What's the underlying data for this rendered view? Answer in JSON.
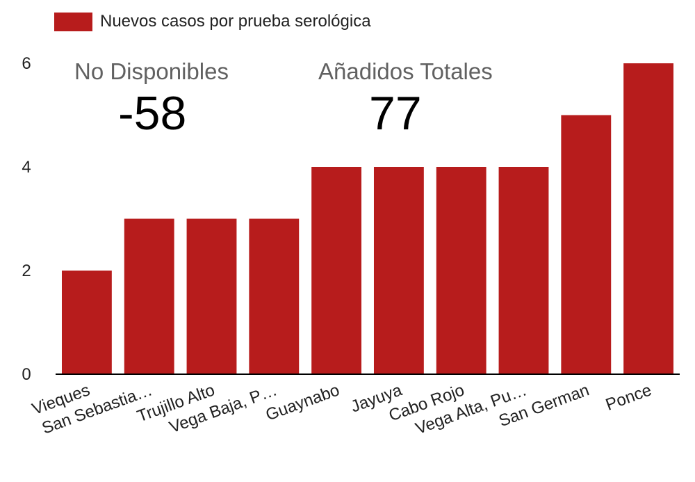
{
  "legend": {
    "label": "Nuevos casos por prueba serológica"
  },
  "stats": {
    "no_disponibles": {
      "label": "No Disponibles",
      "value": "-58"
    },
    "anadidos_totales": {
      "label": "Añadidos Totales",
      "value": "77"
    }
  },
  "colors": {
    "bar": "#b71c1c",
    "axis": "#000000",
    "text": "#212121"
  },
  "chart_data": {
    "type": "bar",
    "categories": [
      "Vieques",
      "San Sebastia…",
      "Trujillo Alto",
      "Vega Baja, P…",
      "Guaynabo",
      "Jayuya",
      "Cabo Rojo",
      "Vega Alta, Pu…",
      "San German",
      "Ponce"
    ],
    "series": [
      {
        "name": "Nuevos casos por prueba serológica",
        "values": [
          2,
          3,
          3,
          3,
          4,
          4,
          4,
          4,
          5,
          6
        ]
      }
    ],
    "yticks": [
      0,
      2,
      4,
      6
    ],
    "ylim": [
      0,
      6
    ],
    "grid": false,
    "legend_position": "top-left"
  }
}
